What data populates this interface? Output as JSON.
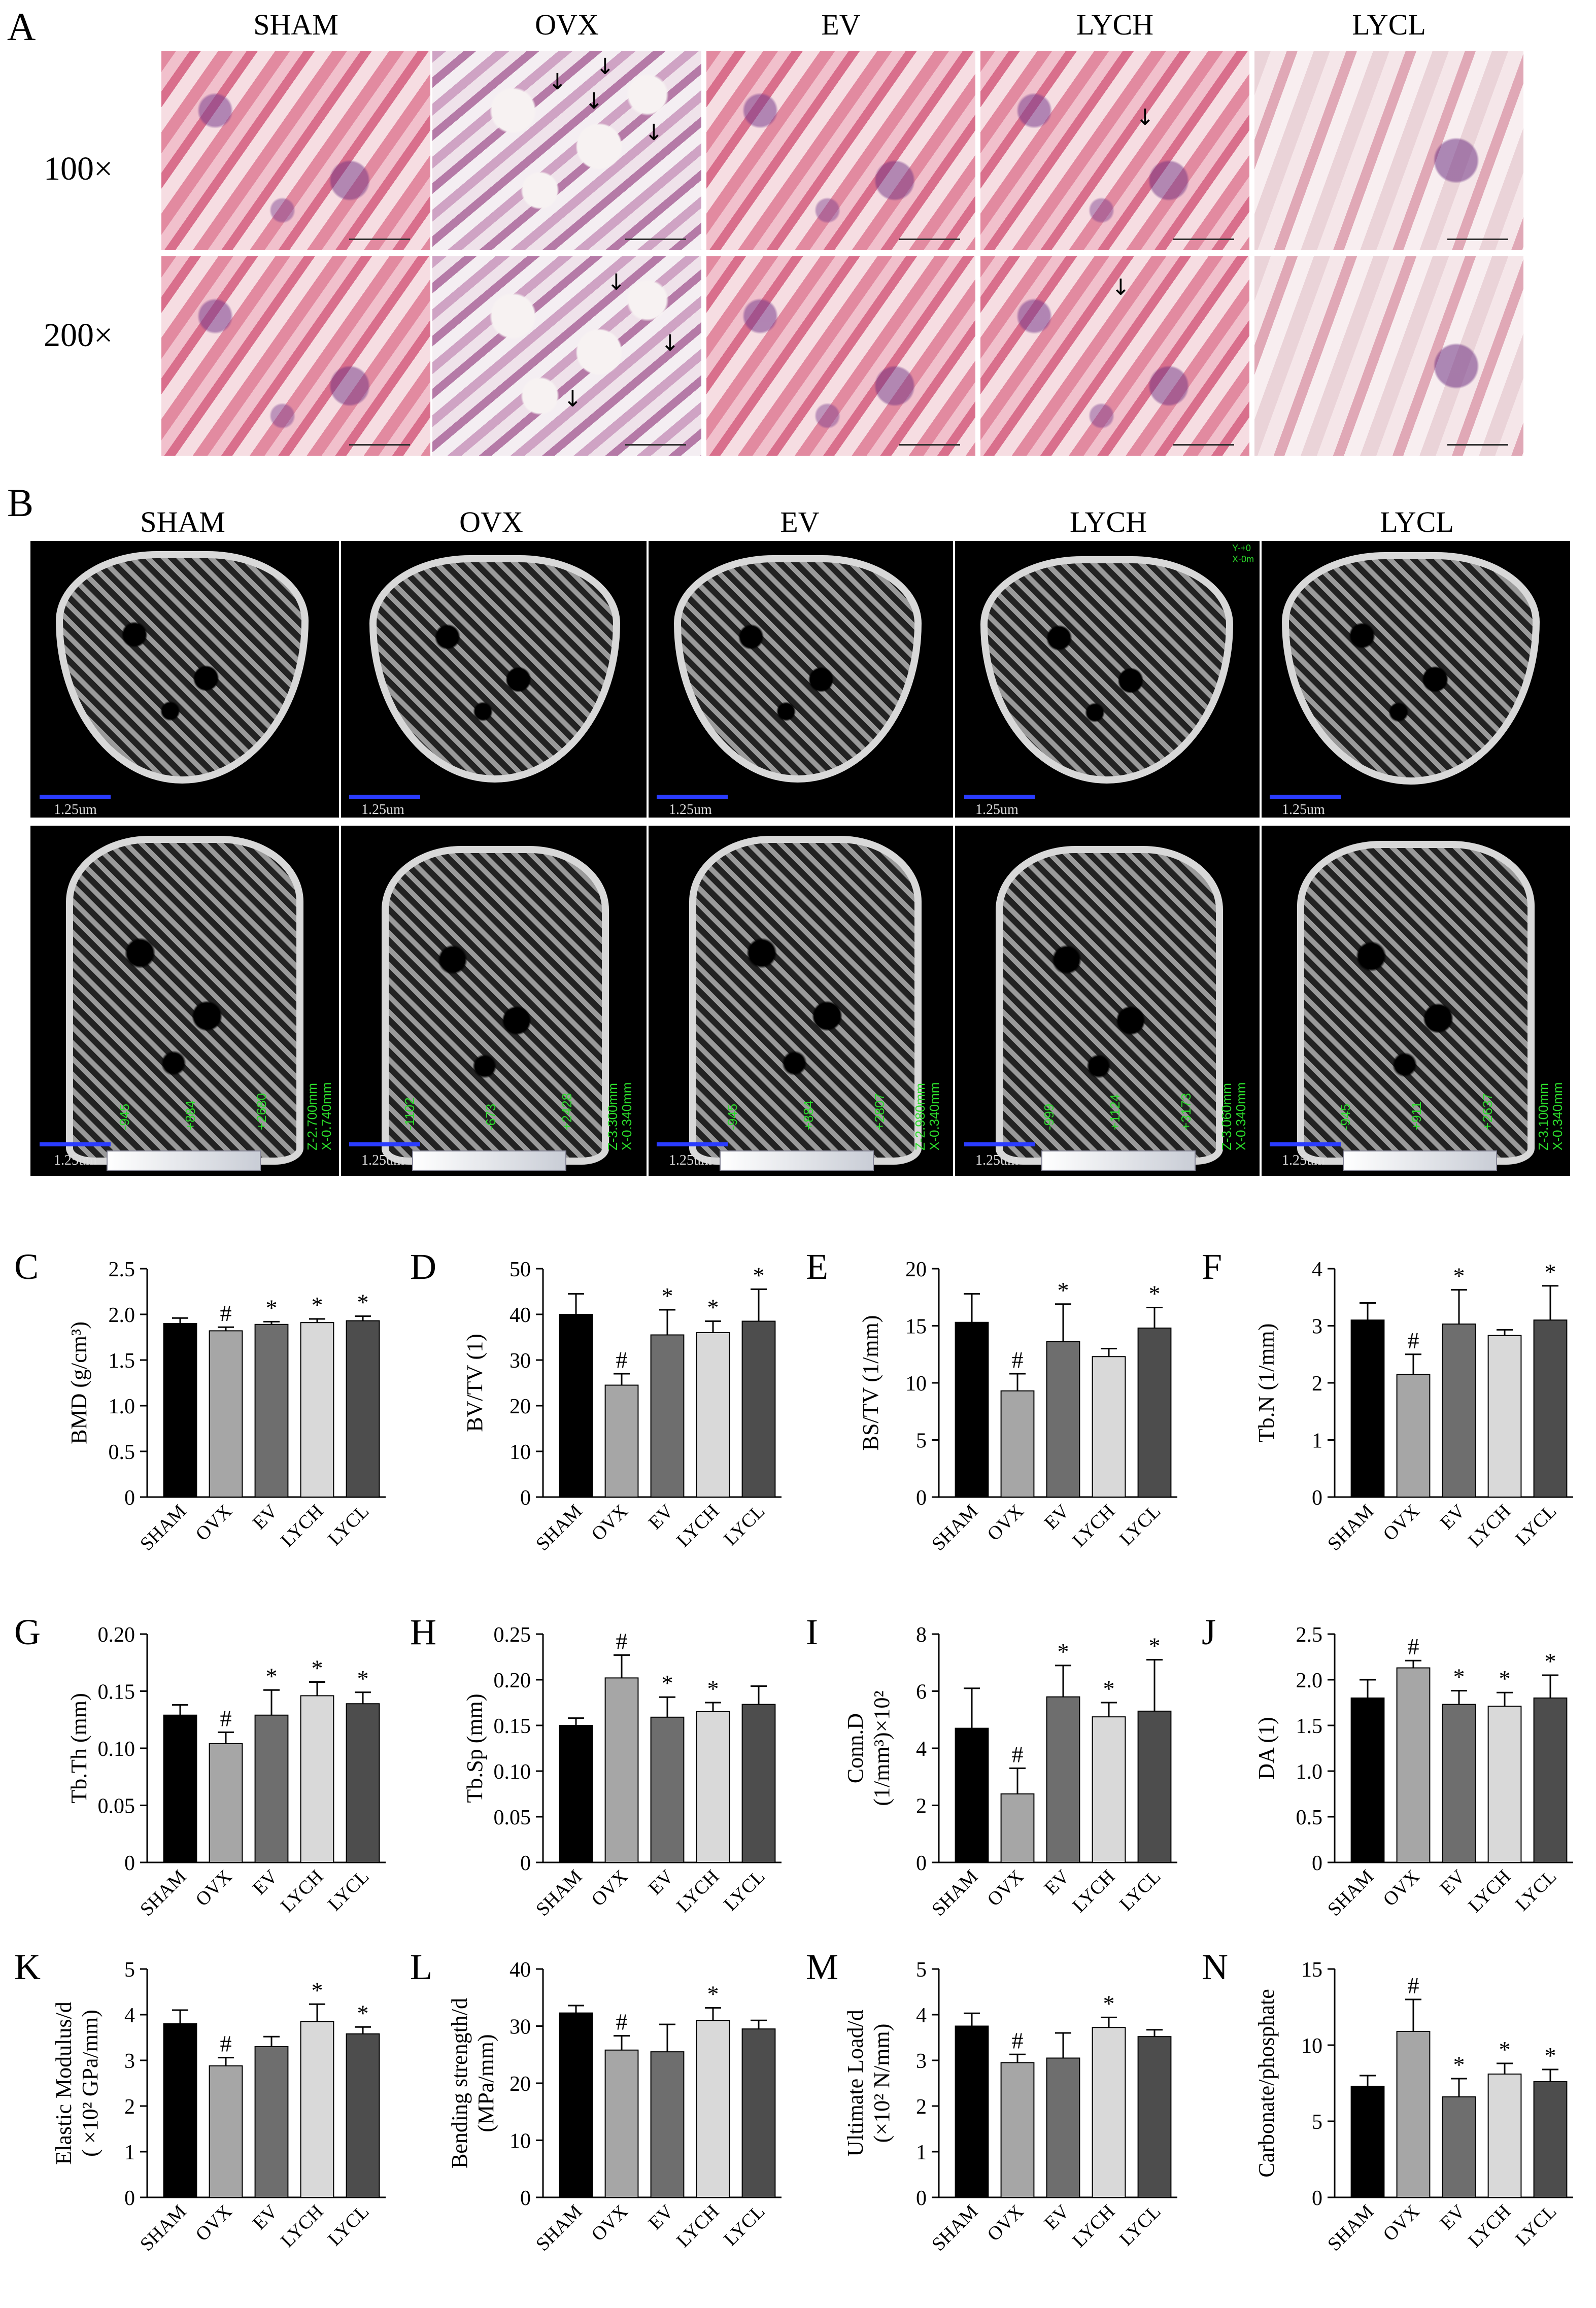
{
  "panel_A": {
    "letter": "A",
    "groups": [
      "SHAM",
      "OVX",
      "EV",
      "LYCH",
      "LYCL"
    ],
    "magnifications": [
      "100×",
      "200×"
    ]
  },
  "panel_B": {
    "letter": "B",
    "groups": [
      "SHAM",
      "OVX",
      "EV",
      "LYCH",
      "LYCL"
    ],
    "scale_label": "1.25um",
    "overlay_text": {
      "top_corner": [
        "Y-+0",
        "X-0m"
      ],
      "bottom_z": [
        "Z-2.700mm",
        "Z-3.300mm",
        "Z-2.980mm",
        "Z-3.060mm",
        "Z-3.100mm"
      ],
      "bottom_x": [
        "X-0.740mm",
        "X-0.340mm",
        "X-0.340mm",
        "X-0.340mm",
        "X-0.340mm"
      ],
      "bottom_vals": [
        [
          "-945",
          "+884",
          "+2680"
        ],
        [
          "-1102",
          "-673",
          "+2428"
        ],
        [
          "-945",
          "+884",
          "+2807"
        ],
        [
          "-999",
          "+1124",
          "+3173"
        ],
        [
          "-945",
          "+911",
          "+2637"
        ]
      ]
    }
  },
  "chart_data": [
    {
      "id": "C",
      "type": "bar",
      "ylabel": "BMD (g/cm³)",
      "ylim": [
        0,
        2.5
      ],
      "yticks": [
        "0",
        "0.5",
        "1.0",
        "1.5",
        "2.0",
        "2.5"
      ],
      "categories": [
        "SHAM",
        "OVX",
        "EV",
        "LYCH",
        "LYCL"
      ],
      "values": [
        1.9,
        1.82,
        1.89,
        1.91,
        1.93
      ],
      "errors": [
        0.06,
        0.04,
        0.03,
        0.04,
        0.05
      ],
      "marks": [
        "",
        "#",
        "*",
        "*",
        "*"
      ]
    },
    {
      "id": "D",
      "type": "bar",
      "ylabel": "BV/TV (1)",
      "ylim": [
        0,
        50
      ],
      "yticks": [
        "0",
        "10",
        "20",
        "30",
        "40",
        "50"
      ],
      "categories": [
        "SHAM",
        "OVX",
        "EV",
        "LYCH",
        "LYCL"
      ],
      "values": [
        40,
        24.5,
        35.5,
        36,
        38.5
      ],
      "errors": [
        4.5,
        2.5,
        5.5,
        2.5,
        7
      ],
      "marks": [
        "",
        "#",
        "*",
        "*",
        "*"
      ]
    },
    {
      "id": "E",
      "type": "bar",
      "ylabel": "BS/TV (1/mm)",
      "ylim": [
        0,
        20
      ],
      "yticks": [
        "0",
        "5",
        "10",
        "15",
        "20"
      ],
      "categories": [
        "SHAM",
        "OVX",
        "EV",
        "LYCH",
        "LYCL"
      ],
      "values": [
        15.3,
        9.3,
        13.6,
        12.3,
        14.8
      ],
      "errors": [
        2.5,
        1.5,
        3.3,
        0.7,
        1.8
      ],
      "marks": [
        "",
        "#",
        "*",
        "",
        "*"
      ]
    },
    {
      "id": "F",
      "type": "bar",
      "ylabel": "Tb.N (1/mm)",
      "ylim": [
        0,
        4
      ],
      "yticks": [
        "0",
        "1",
        "2",
        "3",
        "4"
      ],
      "categories": [
        "SHAM",
        "OVX",
        "EV",
        "LYCH",
        "LYCL"
      ],
      "values": [
        3.1,
        2.15,
        3.03,
        2.83,
        3.1
      ],
      "errors": [
        0.3,
        0.35,
        0.6,
        0.1,
        0.6
      ],
      "marks": [
        "",
        "#",
        "*",
        "",
        "*"
      ]
    },
    {
      "id": "G",
      "type": "bar",
      "ylabel": "Tb.Th (mm)",
      "ylim": [
        0,
        0.2
      ],
      "yticks": [
        "0",
        "0.05",
        "0.10",
        "0.15",
        "0.20"
      ],
      "categories": [
        "SHAM",
        "OVX",
        "EV",
        "LYCH",
        "LYCL"
      ],
      "values": [
        0.129,
        0.104,
        0.129,
        0.146,
        0.139
      ],
      "errors": [
        0.009,
        0.01,
        0.022,
        0.012,
        0.01
      ],
      "marks": [
        "",
        "#",
        "*",
        "*",
        "*"
      ]
    },
    {
      "id": "H",
      "type": "bar",
      "ylabel": "Tb.Sp (mm)",
      "ylim": [
        0,
        0.25
      ],
      "yticks": [
        "0",
        "0.05",
        "0.10",
        "0.15",
        "0.20",
        "0.25"
      ],
      "categories": [
        "SHAM",
        "OVX",
        "EV",
        "LYCH",
        "LYCL"
      ],
      "values": [
        0.15,
        0.202,
        0.159,
        0.165,
        0.173
      ],
      "errors": [
        0.008,
        0.025,
        0.022,
        0.01,
        0.02
      ],
      "marks": [
        "",
        "#",
        "*",
        "*",
        ""
      ]
    },
    {
      "id": "I",
      "type": "bar",
      "ylabel": "Conn.D",
      "ylabel2": "(1/mm³)×10²",
      "ylim": [
        0,
        8
      ],
      "yticks": [
        "0",
        "2",
        "4",
        "6",
        "8"
      ],
      "categories": [
        "SHAM",
        "OVX",
        "EV",
        "LYCH",
        "LYCL"
      ],
      "values": [
        4.7,
        2.4,
        5.8,
        5.1,
        5.3
      ],
      "errors": [
        1.4,
        0.9,
        1.1,
        0.5,
        1.8
      ],
      "marks": [
        "",
        "#",
        "*",
        "*",
        "*"
      ]
    },
    {
      "id": "J",
      "type": "bar",
      "ylabel": "DA (1)",
      "ylim": [
        0,
        2.5
      ],
      "yticks": [
        "0",
        "0.5",
        "1.0",
        "1.5",
        "2.0",
        "2.5"
      ],
      "categories": [
        "SHAM",
        "OVX",
        "EV",
        "LYCH",
        "LYCL"
      ],
      "values": [
        1.8,
        2.13,
        1.73,
        1.71,
        1.8
      ],
      "errors": [
        0.2,
        0.08,
        0.15,
        0.15,
        0.25
      ],
      "marks": [
        "",
        "#",
        "*",
        "*",
        "*"
      ]
    },
    {
      "id": "K",
      "type": "bar",
      "ylabel": "Elastic Modulus/d",
      "ylabel2": "( ×10² GPa/mm)",
      "ylim": [
        0,
        5
      ],
      "yticks": [
        "0",
        "1",
        "2",
        "3",
        "4",
        "5"
      ],
      "categories": [
        "SHAM",
        "OVX",
        "EV",
        "LYCH",
        "LYCL"
      ],
      "values": [
        3.8,
        2.88,
        3.3,
        3.85,
        3.58
      ],
      "errors": [
        0.3,
        0.18,
        0.22,
        0.38,
        0.15
      ],
      "marks": [
        "",
        "#",
        "",
        "*",
        "*"
      ]
    },
    {
      "id": "L",
      "type": "bar",
      "ylabel": "Bending strength/d",
      "ylabel2": "(MPa/mm)",
      "ylim": [
        0,
        40
      ],
      "yticks": [
        "0",
        "10",
        "20",
        "30",
        "40"
      ],
      "categories": [
        "SHAM",
        "OVX",
        "EV",
        "LYCH",
        "LYCL"
      ],
      "values": [
        32.3,
        25.8,
        25.5,
        31,
        29.5
      ],
      "errors": [
        1.3,
        2.5,
        4.8,
        2.2,
        1.5
      ],
      "marks": [
        "",
        "#",
        "",
        "*",
        ""
      ]
    },
    {
      "id": "M",
      "type": "bar",
      "ylabel": "Ultimate Load/d",
      "ylabel2": "(×10² N/mm)",
      "ylim": [
        0,
        5
      ],
      "yticks": [
        "0",
        "1",
        "2",
        "3",
        "4",
        "5"
      ],
      "categories": [
        "SHAM",
        "OVX",
        "EV",
        "LYCH",
        "LYCL"
      ],
      "values": [
        3.75,
        2.95,
        3.05,
        3.72,
        3.52
      ],
      "errors": [
        0.28,
        0.18,
        0.55,
        0.22,
        0.15
      ],
      "marks": [
        "",
        "#",
        "",
        "*",
        ""
      ]
    },
    {
      "id": "N",
      "type": "bar",
      "ylabel": "Carbonate/phosphate",
      "ylim": [
        0,
        15
      ],
      "yticks": [
        "0",
        "5",
        "10",
        "15"
      ],
      "categories": [
        "SHAM",
        "OVX",
        "EV",
        "LYCH",
        "LYCL"
      ],
      "values": [
        7.3,
        10.9,
        6.6,
        8.1,
        7.6
      ],
      "errors": [
        0.7,
        2.1,
        1.2,
        0.7,
        0.8
      ],
      "marks": [
        "",
        "#",
        "*",
        "*",
        "*"
      ]
    }
  ],
  "bar_colors": [
    "#000000",
    "#a6a6a6",
    "#6e6e6e",
    "#d9d9d9",
    "#4d4d4d"
  ]
}
